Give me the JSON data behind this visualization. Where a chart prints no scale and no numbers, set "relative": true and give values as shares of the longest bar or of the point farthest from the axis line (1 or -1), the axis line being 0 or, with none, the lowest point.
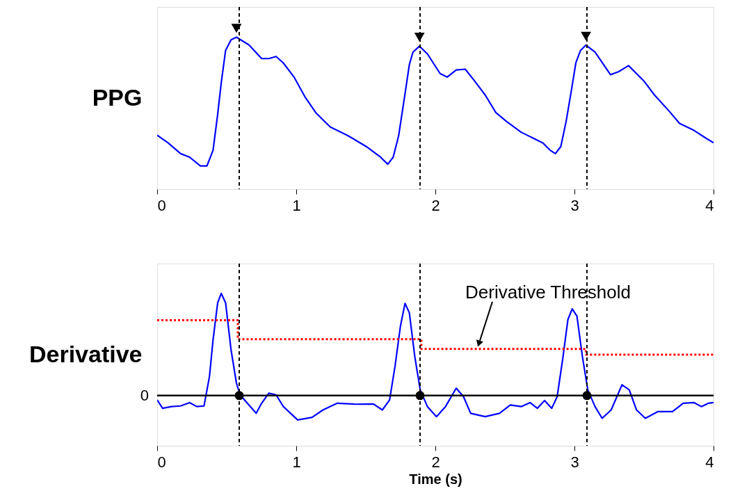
{
  "chart_data": [
    {
      "type": "line",
      "relative": true,
      "ylabel": "PPG",
      "xlim": [
        0,
        4
      ],
      "xticks": [
        0,
        1,
        2,
        3,
        4
      ],
      "grid": false,
      "series": [
        {
          "color": "#0000ff",
          "x": [
            0,
            0.078,
            0.168,
            0.233,
            0.311,
            0.358,
            0.402,
            0.435,
            0.461,
            0.492,
            0.531,
            0.57,
            0.661,
            0.751,
            0.803,
            0.855,
            0.907,
            0.984,
            1.062,
            1.14,
            1.244,
            1.373,
            1.503,
            1.606,
            1.658,
            1.697,
            1.736,
            1.775,
            1.813,
            1.839,
            1.886,
            1.943,
            2.034,
            2.085,
            2.15,
            2.215,
            2.28,
            2.358,
            2.435,
            2.513,
            2.617,
            2.694,
            2.772,
            2.824,
            2.863,
            2.902,
            2.94,
            2.979,
            3.01,
            3.044,
            3.083,
            3.148,
            3.259,
            3.316,
            3.389,
            3.497,
            3.575,
            3.679,
            3.756,
            3.86,
            3.938,
            4.0
          ],
          "values": [
            0.336,
            0.288,
            0.221,
            0.199,
            0.144,
            0.144,
            0.243,
            0.465,
            0.664,
            0.863,
            0.929,
            0.945,
            0.896,
            0.812,
            0.812,
            0.825,
            0.785,
            0.697,
            0.575,
            0.476,
            0.387,
            0.332,
            0.265,
            0.199,
            0.155,
            0.199,
            0.332,
            0.553,
            0.774,
            0.852,
            0.889,
            0.841,
            0.719,
            0.697,
            0.741,
            0.746,
            0.675,
            0.586,
            0.476,
            0.42,
            0.354,
            0.321,
            0.288,
            0.243,
            0.221,
            0.265,
            0.42,
            0.619,
            0.785,
            0.863,
            0.896,
            0.852,
            0.712,
            0.73,
            0.768,
            0.675,
            0.586,
            0.487,
            0.409,
            0.365,
            0.321,
            0.288
          ]
        },
        {
          "type": "scatter",
          "marker": "triangle",
          "color": "#000000",
          "x": [
            0.57,
            1.886,
            3.083
          ],
          "values": [
            1,
            0.945,
            0.951
          ]
        }
      ],
      "ref_lines": [
        {
          "axis": "x",
          "value": 0.59,
          "color": "#000000",
          "line_style": "dashed"
        },
        {
          "axis": "x",
          "value": 1.89,
          "color": "#000000",
          "line_style": "dashed"
        },
        {
          "axis": "x",
          "value": 3.09,
          "color": "#000000",
          "line_style": "dashed"
        }
      ]
    },
    {
      "type": "line",
      "relative": true,
      "ylabel": "Derivative",
      "xlabel": "Time (s)",
      "xlim": [
        0,
        4
      ],
      "xticks": [
        0,
        1,
        2,
        3,
        4
      ],
      "grid": false,
      "series": [
        {
          "color": "#0000ff",
          "x": [
            0,
            0.039,
            0.104,
            0.168,
            0.233,
            0.285,
            0.337,
            0.376,
            0.402,
            0.435,
            0.461,
            0.492,
            0.531,
            0.57,
            0.596,
            0.648,
            0.712,
            0.751,
            0.803,
            0.855,
            0.907,
            1.01,
            1.114,
            1.192,
            1.295,
            1.425,
            1.554,
            1.619,
            1.671,
            1.71,
            1.749,
            1.782,
            1.813,
            1.852,
            1.891,
            1.943,
            2.008,
            2.073,
            2.15,
            2.202,
            2.254,
            2.358,
            2.461,
            2.539,
            2.617,
            2.681,
            2.733,
            2.785,
            2.837,
            2.876,
            2.915,
            2.953,
            2.984,
            3.018,
            3.057,
            3.096,
            3.148,
            3.199,
            3.264,
            3.342,
            3.394,
            3.446,
            3.51,
            3.601,
            3.705,
            3.782,
            3.86,
            3.912,
            3.964,
            4.0
          ],
          "values": [
            -0.043,
            -0.125,
            -0.108,
            -0.102,
            -0.069,
            -0.108,
            -0.102,
            0.187,
            0.548,
            0.908,
            1,
            0.908,
            0.449,
            0.121,
            0.007,
            -0.075,
            -0.174,
            -0.075,
            0.023,
            0.007,
            -0.108,
            -0.239,
            -0.213,
            -0.141,
            -0.075,
            -0.085,
            -0.082,
            -0.141,
            -0.043,
            0.285,
            0.679,
            0.902,
            0.81,
            0.384,
            0.056,
            -0.108,
            -0.207,
            -0.108,
            0.072,
            -0.01,
            -0.174,
            -0.207,
            -0.174,
            -0.092,
            -0.108,
            -0.069,
            -0.125,
            -0.049,
            -0.125,
            -0.01,
            0.351,
            0.744,
            0.849,
            0.777,
            0.384,
            0.056,
            -0.108,
            -0.223,
            -0.141,
            0.105,
            0.056,
            -0.141,
            -0.223,
            -0.157,
            -0.157,
            -0.075,
            -0.069,
            -0.108,
            -0.075,
            -0.069
          ]
        },
        {
          "type": "step",
          "color": "#ff0000",
          "line_style": "dotted",
          "x": [
            0,
            0.58,
            1.899,
            3.083,
            4.0
          ],
          "values": [
            0.738,
            0.551,
            0.456,
            0.4,
            0.4
          ]
        },
        {
          "type": "scatter",
          "marker": "circle",
          "color": "#000000",
          "x": [
            0.59,
            1.89,
            3.09
          ],
          "values": [
            0,
            0,
            0
          ]
        }
      ],
      "ref_lines": [
        {
          "axis": "y",
          "value": 0,
          "label": "0",
          "color": "#000000",
          "line_style": "solid"
        },
        {
          "axis": "x",
          "value": 0.59,
          "color": "#000000",
          "line_style": "dashed"
        },
        {
          "axis": "x",
          "value": 1.89,
          "color": "#000000",
          "line_style": "dashed"
        },
        {
          "axis": "x",
          "value": 3.09,
          "color": "#000000",
          "line_style": "dashed"
        }
      ],
      "annotations": [
        {
          "text": "Derivative Threshold",
          "x": 2.3,
          "y": 0.456
        }
      ]
    }
  ]
}
